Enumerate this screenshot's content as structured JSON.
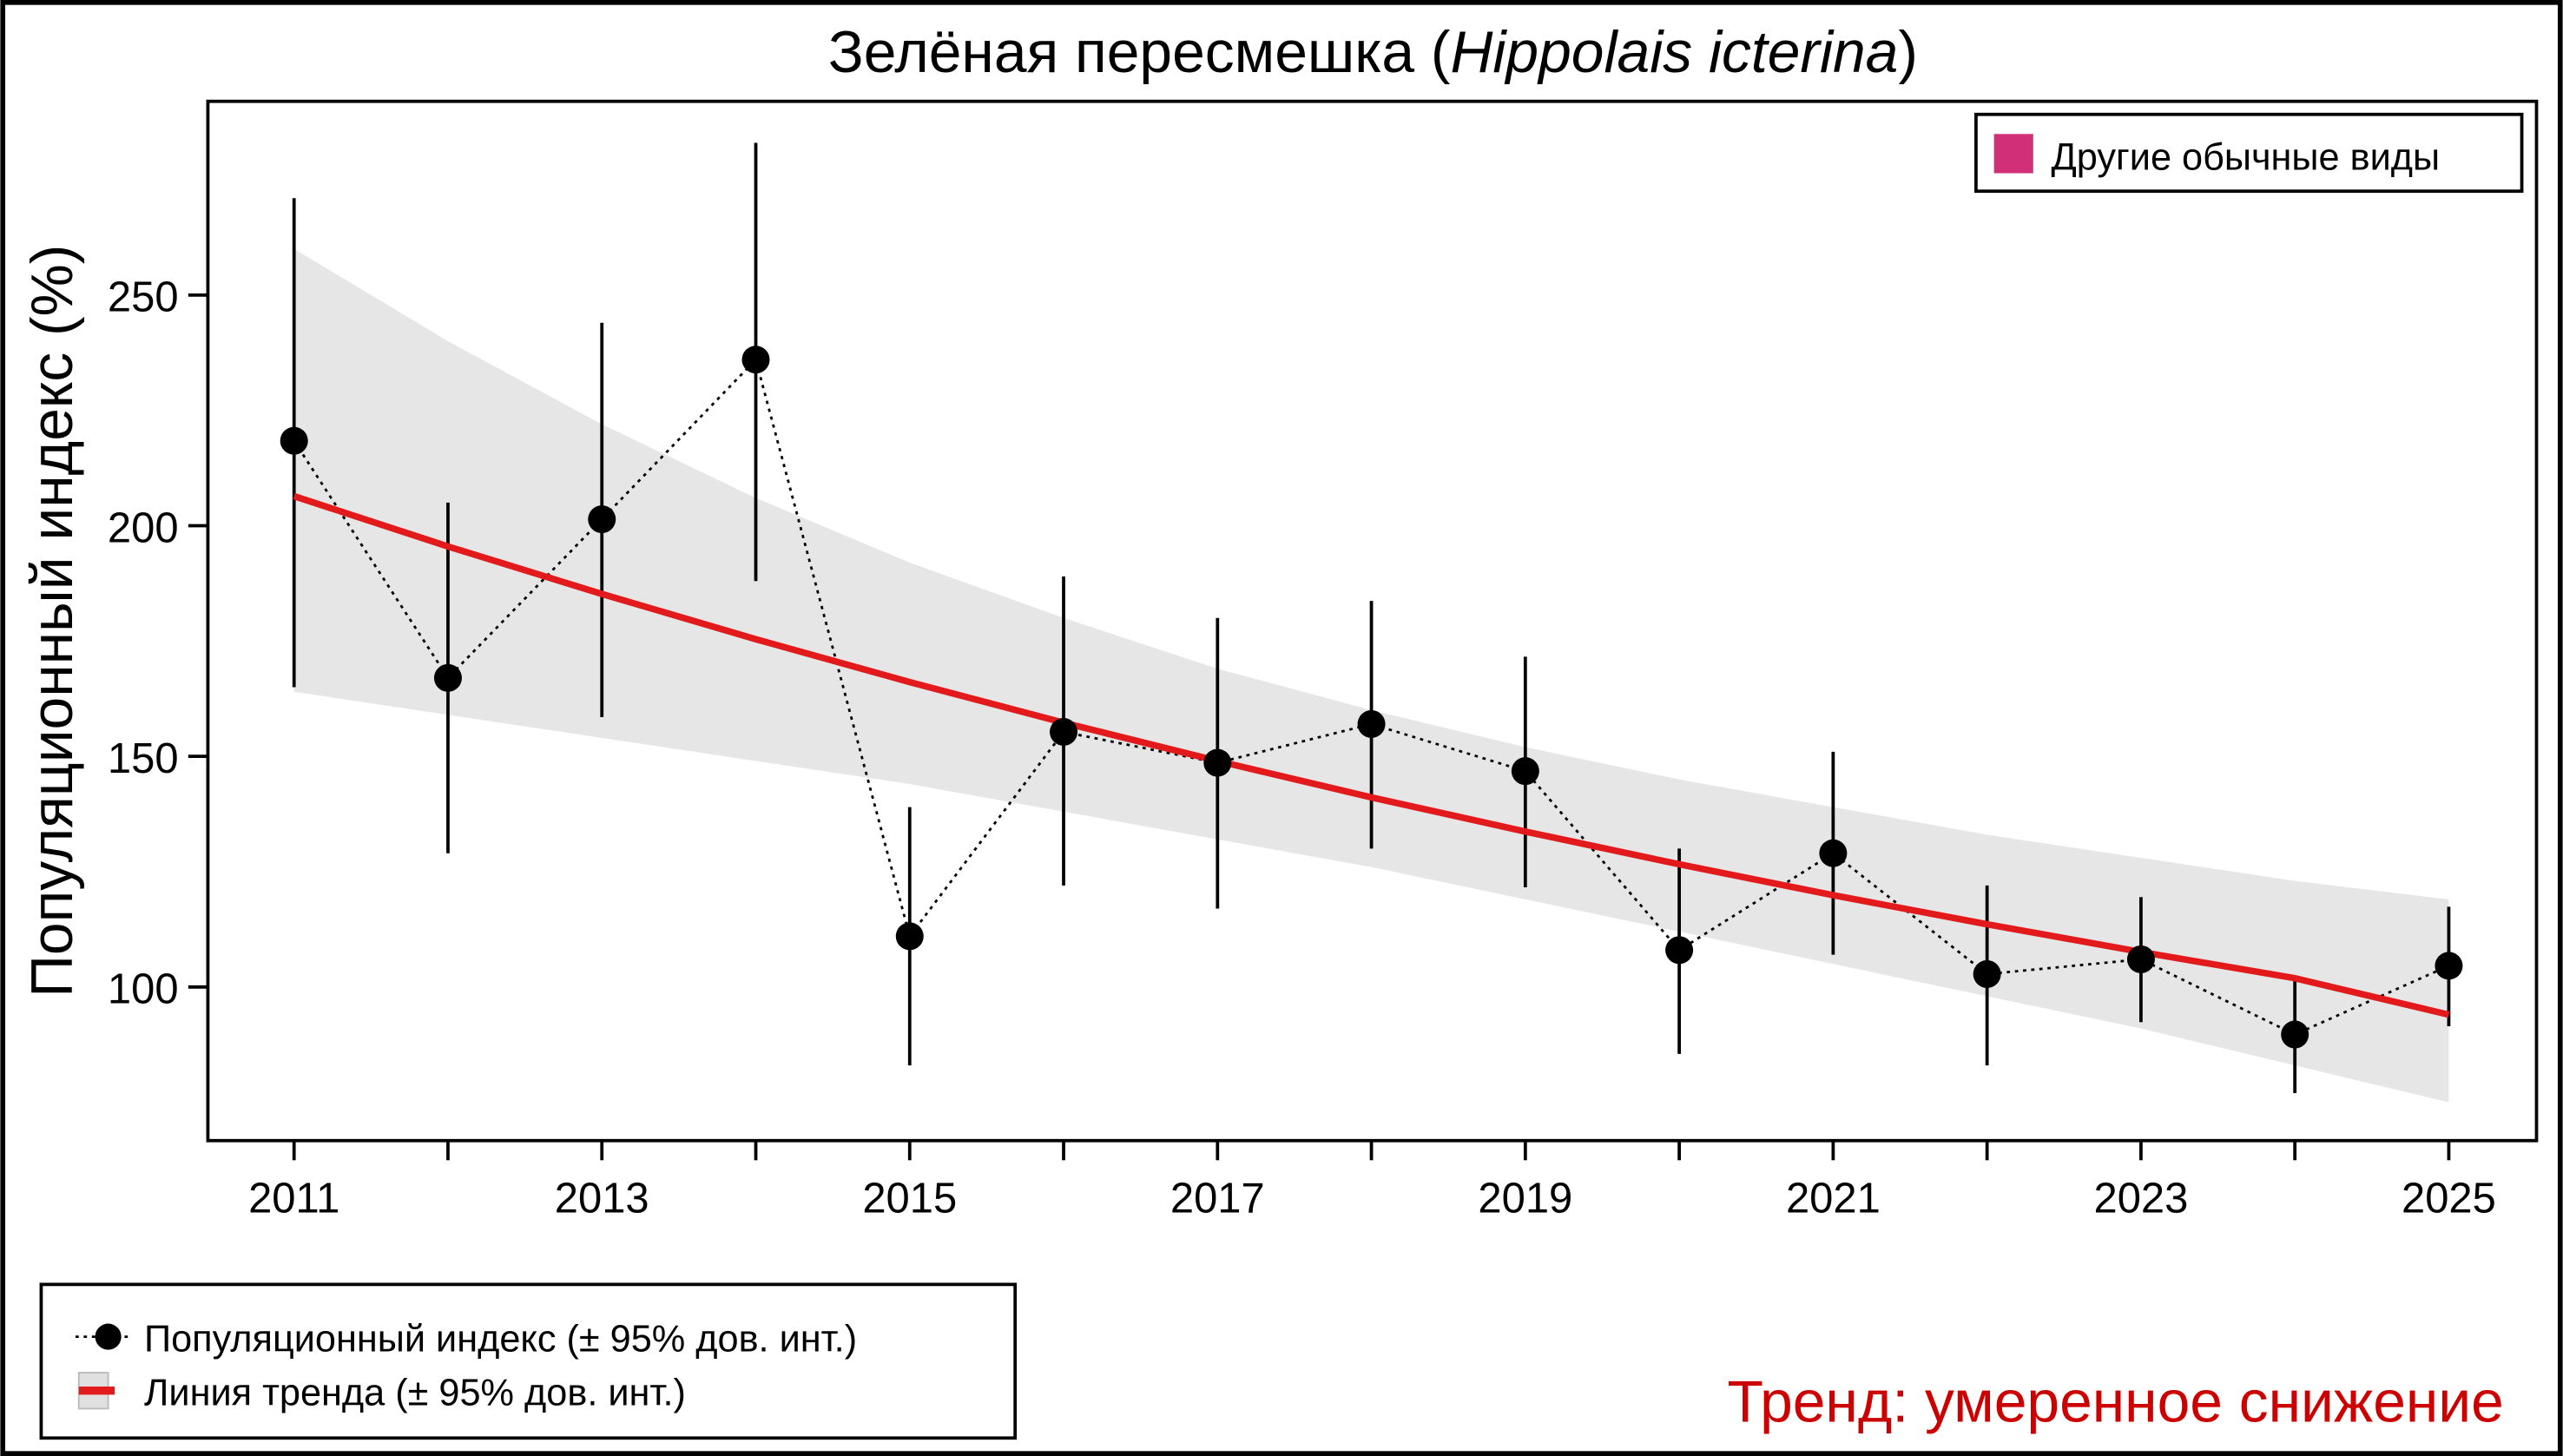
{
  "chart_data": {
    "type": "line",
    "title_main": "Зелёная пересмешка (",
    "title_italic": "Hippolais icterina",
    "title_end": ")",
    "ylabel": "Популяционный индекс (%)",
    "xlabel": "",
    "xlim": [
      2010.44,
      2025.57
    ],
    "ylim": [
      66.7,
      292
    ],
    "x_ticks": [
      2011,
      2012,
      2013,
      2014,
      2015,
      2016,
      2017,
      2018,
      2019,
      2020,
      2021,
      2022,
      2023,
      2024,
      2025
    ],
    "x_tick_labels": [
      "2011",
      "",
      "2013",
      "",
      "2015",
      "",
      "2017",
      "",
      "2019",
      "",
      "2021",
      "",
      "2023",
      "",
      "2025"
    ],
    "y_ticks": [
      100,
      150,
      200,
      250
    ],
    "y_tick_labels": [
      "100",
      "150",
      "200",
      "250"
    ],
    "grid": false,
    "series": [
      {
        "name": "Популяционный индекс (± 95% дов. инт.)",
        "type": "scatter-dotted-line",
        "color": "#000000",
        "x": [
          2011,
          2012,
          2013,
          2014,
          2015,
          2016,
          2017,
          2018,
          2019,
          2020,
          2021,
          2022,
          2023,
          2024,
          2025
        ],
        "values": [
          218.4,
          167,
          201.4,
          236,
          111,
          155.3,
          148.6,
          157,
          146.8,
          108,
          129,
          102.8,
          106,
          89.7,
          104.6
        ],
        "ci_upper": [
          271,
          205,
          244,
          283,
          139,
          189,
          180,
          183.7,
          171.6,
          130,
          151,
          122,
          119.5,
          102,
          117.4
        ],
        "ci_lower": [
          165,
          129,
          158.5,
          188,
          83,
          122,
          117,
          130,
          121.6,
          85.5,
          107,
          83,
          92.4,
          77,
          91.5
        ]
      },
      {
        "name": "Линия тренда (± 95% дов. инт.)",
        "type": "line-band",
        "color": "#e31a1c",
        "band_color": "#e6e6e6",
        "x": [
          2011,
          2012,
          2013,
          2014,
          2015,
          2016,
          2017,
          2018,
          2019,
          2020,
          2021,
          2022,
          2023,
          2024,
          2025
        ],
        "values": [
          206.4,
          195.5,
          185.2,
          175.4,
          166.1,
          157.3,
          149.0,
          141.1,
          133.7,
          126.6,
          119.9,
          113.6,
          107.6,
          101.9,
          94.0
        ],
        "ci_upper": [
          260,
          240,
          222,
          206,
          192,
          180,
          169,
          160,
          152,
          145,
          139,
          133,
          128,
          123,
          119
        ],
        "ci_lower": [
          164,
          159,
          154,
          149,
          144,
          138,
          132,
          126,
          119,
          112,
          105,
          98,
          91,
          83,
          75
        ]
      }
    ],
    "legend_top": {
      "label": "Другие обычные виды",
      "color": "#d12f77",
      "placement": "top-right"
    },
    "legend_bottom": {
      "placement": "bottom-left",
      "items": [
        "Популяционный индекс (± 95% дов. инт.)",
        "Линия тренда (± 95% дов. инт.)"
      ]
    },
    "annotation": {
      "text": "Тренд: умеренное снижение",
      "color": "#cc0000"
    }
  }
}
